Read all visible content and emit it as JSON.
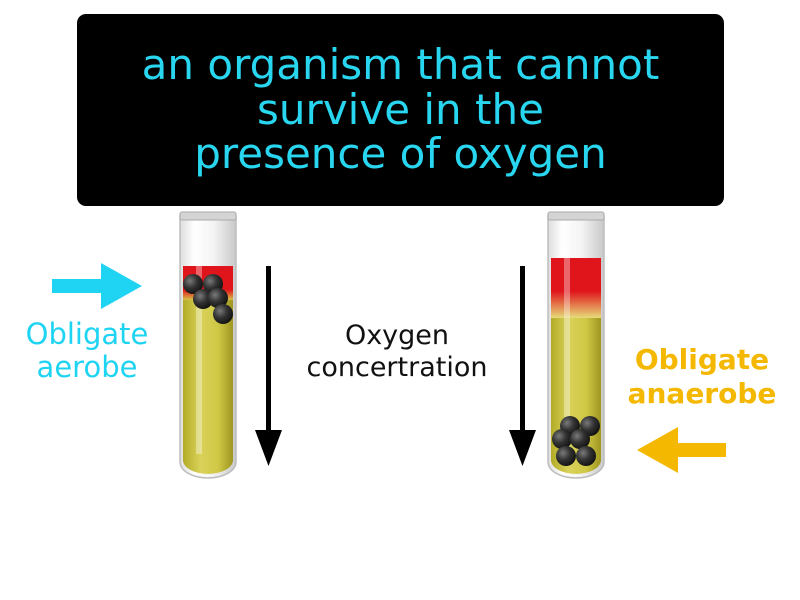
{
  "definition": {
    "lines": [
      "an organism that cannot",
      "survive in the",
      "presence of oxygen"
    ]
  },
  "left_tube": {
    "label_lines": [
      "Obligate",
      "aerobe"
    ],
    "label_color": "#1fd4f2"
  },
  "right_tube": {
    "label_lines": [
      "Obligate",
      "anaerobe"
    ],
    "label_color": "#f5b800"
  },
  "center": {
    "label_lines": [
      "Oxygen",
      "concertration"
    ]
  },
  "colors": {
    "background": "#ffffff",
    "definition_box": "#000000",
    "definition_text": "#29d6f0",
    "medium": "#c9c23c",
    "oxygen_zone": "#e01e1e",
    "bacteria": "#2a2a2a"
  }
}
